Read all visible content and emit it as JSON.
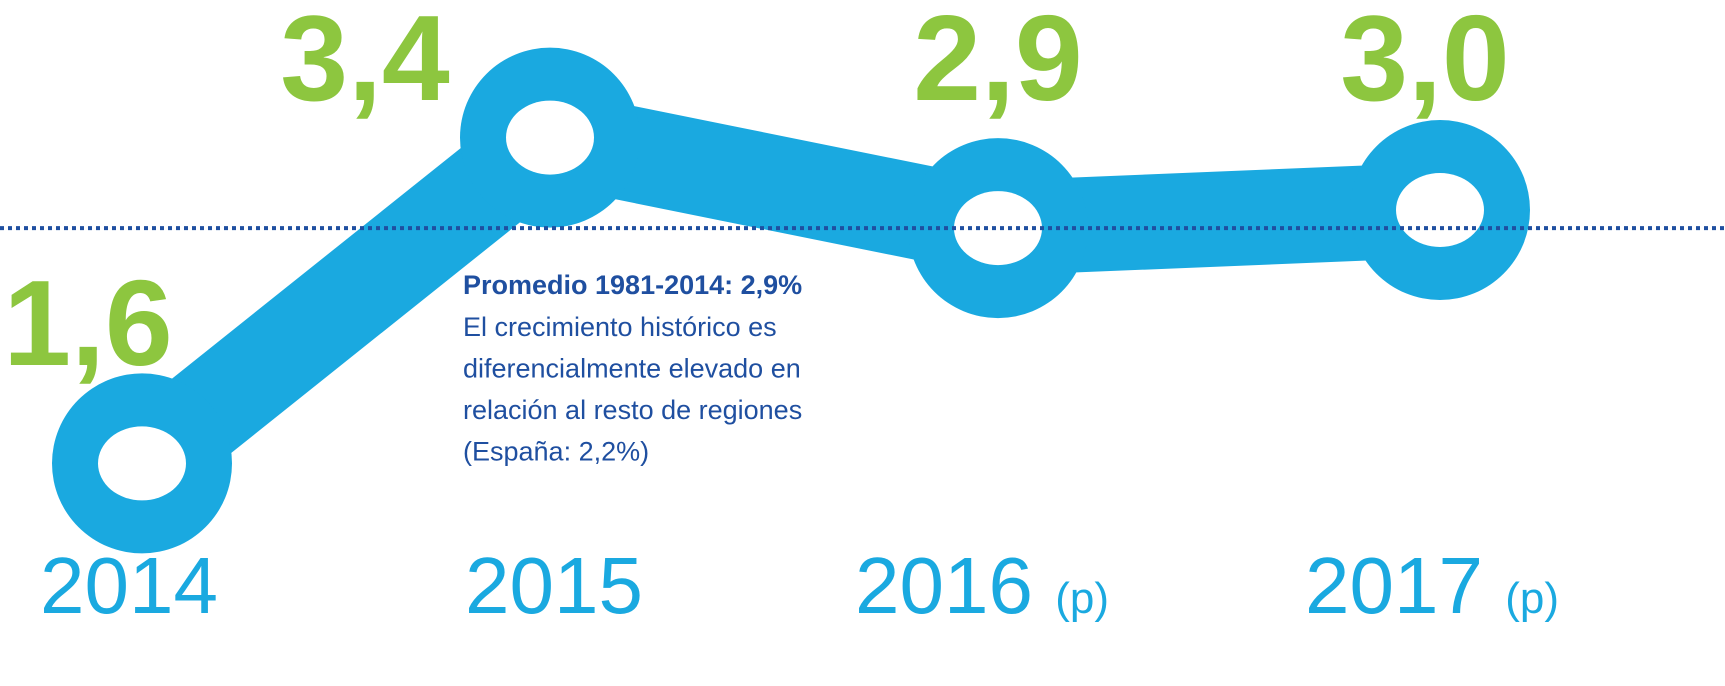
{
  "chart_data": {
    "type": "line",
    "categories": [
      "2014",
      "2015",
      "2016",
      "2017"
    ],
    "category_suffix": [
      null,
      null,
      "(p)",
      "(p)"
    ],
    "values": [
      1.6,
      3.4,
      2.9,
      3.0
    ],
    "value_labels": [
      "1,6",
      "3,4",
      "2,9",
      "3,0"
    ],
    "color": "#1aa9e0",
    "label_color": "#8dc63f",
    "ylim": [
      1,
      4
    ],
    "reference_line": {
      "value": 2.9,
      "color": "#1f4fa0"
    },
    "annotation": {
      "title": "Promedio 1981-2014: 2,9%",
      "lines": [
        "El crecimiento histórico es",
        "diferencialmente elevado en",
        "relación al resto de regiones",
        "(España: 2,2%)"
      ]
    }
  }
}
